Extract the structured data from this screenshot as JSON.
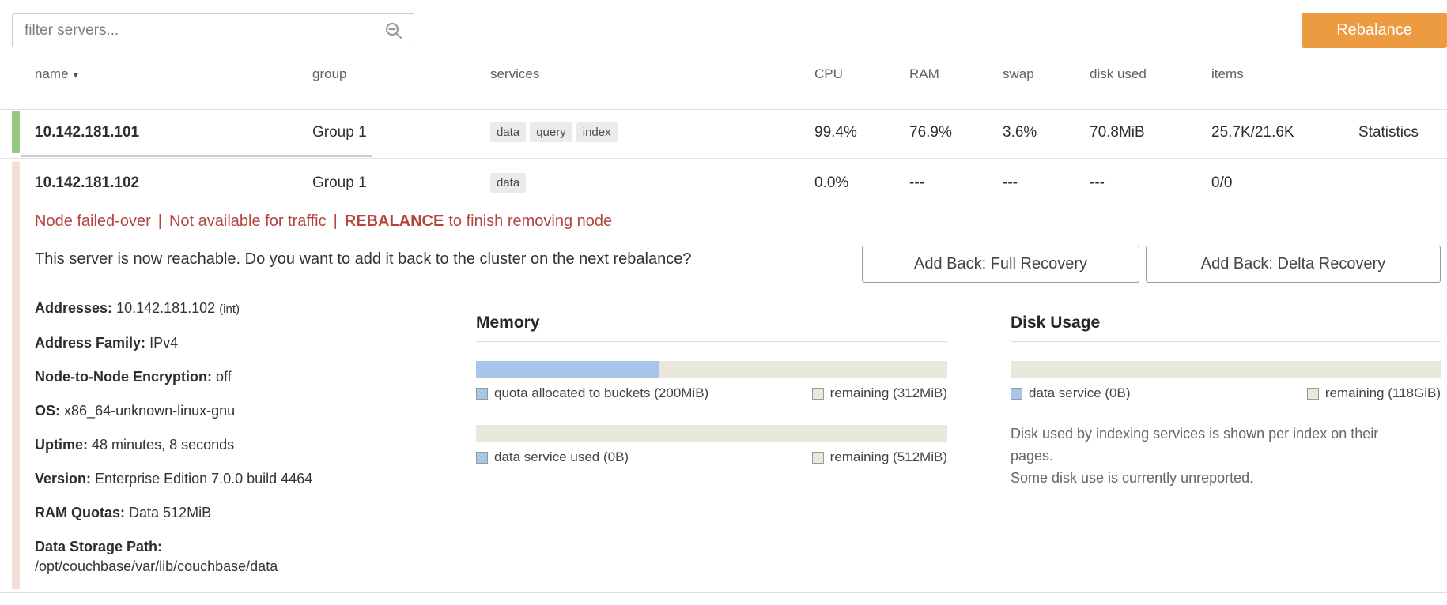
{
  "colors": {
    "accent-orange": "#ec9b40",
    "healthy-green": "#94c87e",
    "failed-pink": "#f4ded9",
    "warning-red": "#b5443d",
    "link-blue": "#4287d6",
    "bar-blue": "#a9c5ea",
    "bar-beige": "#e9e8da"
  },
  "toolbar": {
    "filter_placeholder": "filter servers...",
    "rebalance_label": "Rebalance"
  },
  "table": {
    "headers": {
      "name": "name",
      "group": "group",
      "services": "services",
      "cpu": "CPU",
      "ram": "RAM",
      "swap": "swap",
      "disk_used": "disk used",
      "items": "items"
    },
    "sort_icon": "▾",
    "rows": [
      {
        "name": "10.142.181.101",
        "group": "Group 1",
        "services": [
          "data",
          "query",
          "index"
        ],
        "cpu": "99.4%",
        "ram": "76.9%",
        "swap": "3.6%",
        "disk_used": "70.8MiB",
        "items": "25.7K/21.6K",
        "action": "Statistics"
      },
      {
        "name": "10.142.181.102",
        "group": "Group 1",
        "services": [
          "data"
        ],
        "cpu": "0.0%",
        "ram": "---",
        "swap": "---",
        "disk_used": "---",
        "items": "0/0"
      }
    ]
  },
  "expanded": {
    "warning": {
      "segment1": "Node failed-over",
      "separator": "|",
      "segment2": "Not available for traffic",
      "action_bold": "REBALANCE",
      "action_rest": "to finish removing node"
    },
    "reachable_text": "This server is now reachable. Do you want to add it back to the cluster on the next rebalance?",
    "buttons": {
      "full": "Add Back: Full Recovery",
      "delta": "Add Back: Delta Recovery"
    },
    "details": [
      {
        "label": "Addresses:",
        "value": "10.142.181.102",
        "suffix": "(int)"
      },
      {
        "label": "Address Family:",
        "value": "IPv4"
      },
      {
        "label": "Node-to-Node Encryption:",
        "value": "off"
      },
      {
        "label": "OS:",
        "value": "x86_64-unknown-linux-gnu"
      },
      {
        "label": "Uptime:",
        "value": "48 minutes, 8 seconds"
      },
      {
        "label": "Version:",
        "value": "Enterprise Edition 7.0.0 build 4464"
      },
      {
        "label": "RAM Quotas:",
        "value": "Data 512MiB"
      },
      {
        "label": "Data Storage Path:",
        "value": "/opt/couchbase/var/lib/couchbase/data"
      }
    ],
    "memory": {
      "title": "Memory",
      "bars": [
        {
          "fill_pct": 39,
          "legend": [
            {
              "label": "quota allocated to buckets (200MiB)"
            },
            {
              "label": "remaining (312MiB)"
            }
          ]
        },
        {
          "fill_pct": 0,
          "legend": [
            {
              "label": "data service used (0B)"
            },
            {
              "label": "remaining (512MiB)"
            }
          ]
        }
      ]
    },
    "disk": {
      "title": "Disk Usage",
      "bars": [
        {
          "fill_pct": 0,
          "legend": [
            {
              "label": "data service (0B)"
            },
            {
              "label": "remaining (118GiB)"
            }
          ]
        }
      ],
      "notes": [
        "Disk used by indexing services is shown per index on their pages.",
        "Some disk use is currently unreported."
      ]
    }
  }
}
